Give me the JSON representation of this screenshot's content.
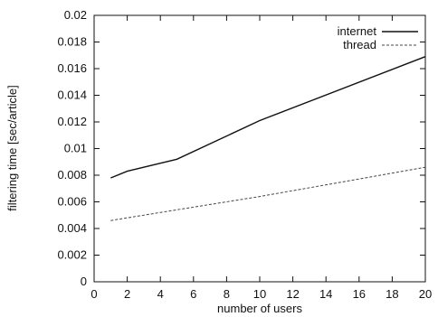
{
  "chart_data": {
    "type": "line",
    "title": "",
    "xlabel": "number of users",
    "ylabel": "filtering time [sec/article]",
    "xlim": [
      0,
      20
    ],
    "ylim": [
      0,
      0.02
    ],
    "x_ticks": [
      "0",
      "2",
      "4",
      "6",
      "8",
      "10",
      "12",
      "14",
      "16",
      "18",
      "20"
    ],
    "y_ticks": [
      "0",
      "0.002",
      "0.004",
      "0.006",
      "0.008",
      "0.01",
      "0.012",
      "0.014",
      "0.016",
      "0.018",
      "0.02"
    ],
    "grid": false,
    "legend_position": "top-right",
    "series": [
      {
        "name": "internet",
        "style": "solid",
        "x": [
          1,
          2,
          5,
          10,
          20
        ],
        "y": [
          0.0078,
          0.0083,
          0.0092,
          0.0121,
          0.0169
        ]
      },
      {
        "name": "thread",
        "style": "dashed",
        "x": [
          1,
          2,
          5,
          10,
          20
        ],
        "y": [
          0.0046,
          0.0048,
          0.0054,
          0.0064,
          0.0086
        ]
      }
    ]
  }
}
